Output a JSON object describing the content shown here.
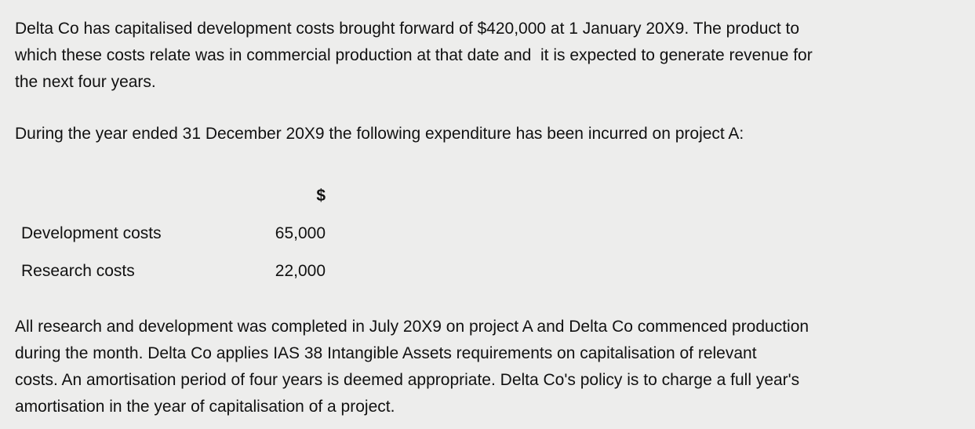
{
  "intro": "Delta Co has capitalised development costs brought forward of $420,000 at 1 January 20X9. The product to\nwhich these costs relate was in commercial production at that date and  it is expected to generate revenue for\nthe next four years.",
  "during": "During the year ended 31 December 20X9 the following expenditure has been incurred on project A:",
  "table": {
    "currency_header": "$",
    "rows": [
      {
        "label": "Development costs",
        "amount": "65,000"
      },
      {
        "label": "Research costs",
        "amount": "22,000"
      }
    ]
  },
  "closing": "All research and development was completed in July 20X9 on project A and Delta Co commenced production\nduring the month. Delta Co applies IAS 38 Intangible Assets requirements on capitalisation of relevant\ncosts. An amortisation period of four years is deemed appropriate. Delta Co's policy is to charge a full year's\namortisation in the year of capitalisation of a project."
}
